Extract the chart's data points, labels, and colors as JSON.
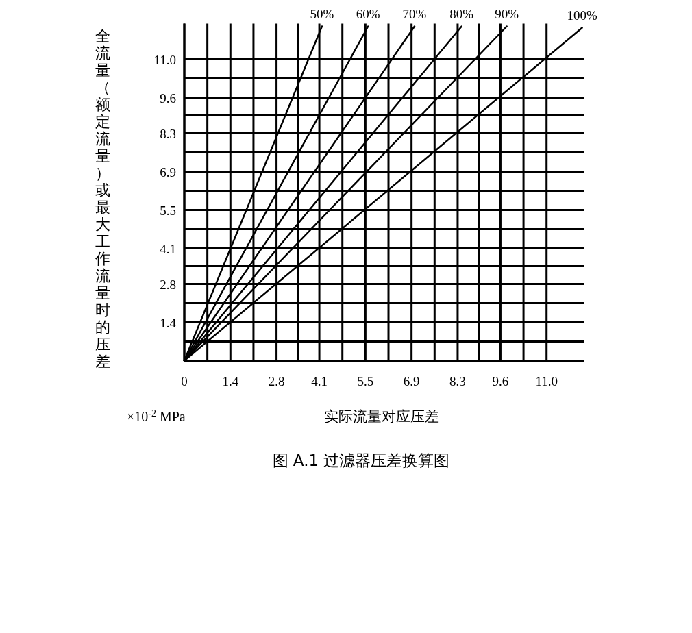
{
  "chart_data": {
    "type": "line",
    "title": "图 A.1 过滤器压差换算图",
    "xlabel": "实际流量对应压差",
    "ylabel": "全流量（额定流量）或最大工作流量时的压差",
    "annotations": [
      "×10$^{-2}$ MPa"
    ],
    "xlim": [
      0,
      12.15
    ],
    "ylim": [
      0,
      12.3
    ],
    "xticks": [
      {
        "value": 0,
        "label": "0"
      },
      {
        "value": 0.7,
        "label": null
      },
      1.4,
      {
        "value": 2.1,
        "label": null
      },
      2.8,
      {
        "value": 3.45,
        "label": null
      },
      4.1,
      {
        "value": 4.8,
        "label": null
      },
      5.5,
      {
        "value": 6.2,
        "label": null
      },
      6.9,
      {
        "value": 7.6,
        "label": null
      },
      8.3,
      {
        "value": 8.95,
        "label": null
      },
      9.6,
      {
        "value": 10.3,
        "label": null
      },
      {
        "value": 11,
        "label": "11.0"
      }
    ],
    "yticks": [
      {
        "value": 0,
        "label": null
      },
      {
        "value": 0.7,
        "label": null
      },
      1.4,
      {
        "value": 2.1,
        "label": null
      },
      2.8,
      {
        "value": 3.45,
        "label": null
      },
      4.1,
      {
        "value": 4.8,
        "label": null
      },
      5.5,
      {
        "value": 6.2,
        "label": null
      },
      6.9,
      {
        "value": 7.6,
        "label": null
      },
      8.3,
      {
        "value": 8.95,
        "label": null
      },
      9.6,
      {
        "value": 10.3,
        "label": null
      },
      {
        "value": 11,
        "label": "11.0"
      }
    ],
    "grid": true,
    "marker": "none",
    "line_style": "solid",
    "series": [
      {
        "name": "50%",
        "color": "#000000",
        "x": [
          0,
          4.18
        ],
        "values": [
          0,
          12.2
        ]
      },
      {
        "name": "60%",
        "color": "#000000",
        "x": [
          0,
          5.58
        ],
        "values": [
          0,
          12.2
        ]
      },
      {
        "name": "70%",
        "color": "#000000",
        "x": [
          0,
          6.99
        ],
        "values": [
          0,
          12.2
        ]
      },
      {
        "name": "80%",
        "color": "#000000",
        "x": [
          0,
          8.42
        ],
        "values": [
          0,
          12.2
        ]
      },
      {
        "name": "90%",
        "color": "#000000",
        "x": [
          0,
          9.79
        ],
        "values": [
          0,
          12.2
        ]
      },
      {
        "name": "100%",
        "color": "#000000",
        "x": [
          0,
          12.08
        ],
        "values": [
          0,
          12.15
        ]
      }
    ]
  }
}
